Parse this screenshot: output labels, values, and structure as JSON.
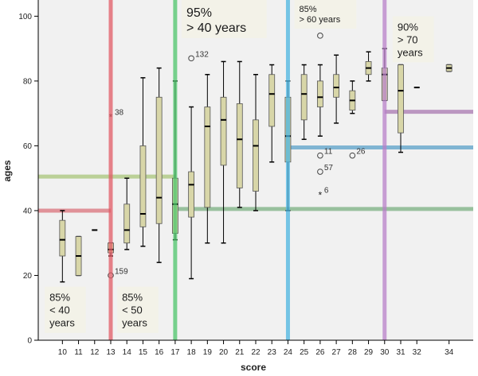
{
  "chart_data": {
    "type": "box",
    "xlabel": "score",
    "ylabel": "ages",
    "ylim": [
      0,
      105
    ],
    "xlim": [
      8.5,
      35.5
    ],
    "yticks": [
      0,
      20,
      40,
      60,
      80,
      100
    ],
    "xticks": [
      10,
      11,
      12,
      13,
      14,
      15,
      16,
      17,
      18,
      19,
      20,
      21,
      22,
      23,
      24,
      25,
      26,
      27,
      28,
      29,
      30,
      31,
      32,
      34
    ],
    "grid": false,
    "box_color": "#d8d6a8",
    "background": "#f1f1f1",
    "boxes": [
      {
        "x": 10,
        "min": 18,
        "q1": 26,
        "median": 31,
        "q3": 37,
        "max": 40
      },
      {
        "x": 11,
        "min": 20,
        "q1": 20,
        "median": 26,
        "q3": 32,
        "max": 32
      },
      {
        "x": 12,
        "min": 34,
        "q1": 34,
        "median": 34,
        "q3": 34,
        "max": 34
      },
      {
        "x": 13,
        "min": 26,
        "q1": 27,
        "median": 28,
        "q3": 30,
        "max": 30
      },
      {
        "x": 14,
        "min": 28,
        "q1": 30,
        "median": 34,
        "q3": 42,
        "max": 50
      },
      {
        "x": 15,
        "min": 29,
        "q1": 35,
        "median": 39,
        "q3": 60,
        "max": 81
      },
      {
        "x": 16,
        "min": 24,
        "q1": 36,
        "median": 44,
        "q3": 75,
        "max": 84
      },
      {
        "x": 17,
        "min": 31,
        "q1": 33,
        "median": 42,
        "q3": 50,
        "max": 80
      },
      {
        "x": 18,
        "min": 19,
        "q1": 38,
        "median": 48,
        "q3": 52,
        "max": 72
      },
      {
        "x": 19,
        "min": 30,
        "q1": 41,
        "median": 66,
        "q3": 72,
        "max": 82
      },
      {
        "x": 20,
        "min": 30,
        "q1": 54,
        "median": 68,
        "q3": 75,
        "max": 86
      },
      {
        "x": 21,
        "min": 41,
        "q1": 47,
        "median": 62,
        "q3": 73,
        "max": 86
      },
      {
        "x": 22,
        "min": 40,
        "q1": 46,
        "median": 60,
        "q3": 68,
        "max": 82
      },
      {
        "x": 23,
        "min": 55,
        "q1": 66,
        "median": 76,
        "q3": 82,
        "max": 85
      },
      {
        "x": 24,
        "min": 40,
        "q1": 55,
        "median": 63,
        "q3": 75,
        "max": 80
      },
      {
        "x": 25,
        "min": 62,
        "q1": 68,
        "median": 76,
        "q3": 82,
        "max": 85
      },
      {
        "x": 26,
        "min": 63,
        "q1": 72,
        "median": 75,
        "q3": 80,
        "max": 85
      },
      {
        "x": 27,
        "min": 67,
        "q1": 75,
        "median": 78,
        "q3": 82,
        "max": 88
      },
      {
        "x": 28,
        "min": 70,
        "q1": 71,
        "median": 74,
        "q3": 77,
        "max": 80
      },
      {
        "x": 29,
        "min": 80,
        "q1": 82,
        "median": 84,
        "q3": 86,
        "max": 89
      },
      {
        "x": 30,
        "min": 74,
        "q1": 74,
        "median": 82,
        "q3": 84,
        "max": 90
      },
      {
        "x": 31,
        "min": 58,
        "q1": 64,
        "median": 77,
        "q3": 85,
        "max": 85
      },
      {
        "x": 32,
        "min": 78,
        "q1": 78,
        "median": 78,
        "q3": 78,
        "max": 78
      },
      {
        "x": 34,
        "min": 83,
        "q1": 83,
        "median": 84,
        "q3": 85,
        "max": 85
      }
    ],
    "outliers": [
      {
        "x": 13,
        "y": 69,
        "label": "38",
        "marker": "star"
      },
      {
        "x": 13,
        "y": 20,
        "label": "159",
        "marker": "circle"
      },
      {
        "x": 18,
        "y": 87,
        "label": "132",
        "marker": "circle"
      },
      {
        "x": 26,
        "y": 94,
        "label": "",
        "marker": "circle"
      },
      {
        "x": 26,
        "y": 57,
        "label": "11",
        "marker": "circle"
      },
      {
        "x": 26,
        "y": 52,
        "label": "57",
        "marker": "circle"
      },
      {
        "x": 26,
        "y": 45,
        "label": "6",
        "marker": "star"
      },
      {
        "x": 28,
        "y": 57,
        "label": "26",
        "marker": "circle"
      }
    ],
    "vlines": [
      {
        "x": 13,
        "color": "#e05a64"
      },
      {
        "x": 17,
        "color": "#4cc46a"
      },
      {
        "x": 24,
        "color": "#49b4e0"
      },
      {
        "x": 30,
        "color": "#b880c8"
      }
    ],
    "hlines": [
      {
        "y": 40,
        "x_from": 8.5,
        "x_to": 13,
        "color": "#d9707a"
      },
      {
        "y": 50.5,
        "x_from": 8.5,
        "x_to": 17,
        "color": "#a8c478"
      },
      {
        "y": 40.5,
        "x_from": 17,
        "x_to": 35.5,
        "color": "#7aaf80"
      },
      {
        "y": 59.5,
        "x_from": 24,
        "x_to": 35.5,
        "color": "#5aa0c8"
      },
      {
        "y": 70.5,
        "x_from": 30,
        "x_to": 35.5,
        "color": "#a878b0"
      }
    ],
    "annotations": [
      {
        "lines": [
          "85%",
          "< 40",
          "years"
        ],
        "x_data": 8.9,
        "y_data": 16.5,
        "size": "medium"
      },
      {
        "lines": [
          "85%",
          "< 50",
          "years"
        ],
        "x_data": 13.4,
        "y_data": 16.5,
        "size": "medium"
      },
      {
        "lines": [
          "95%",
          "> 40 years"
        ],
        "x_data": 17.4,
        "y_data": 105,
        "size": "large"
      },
      {
        "lines": [
          "85%",
          "> 60 years"
        ],
        "x_data": 24.4,
        "y_data": 105,
        "size": "small"
      },
      {
        "lines": [
          "90%",
          "> 70",
          "years"
        ],
        "x_data": 30.5,
        "y_data": 100,
        "size": "medium"
      }
    ]
  }
}
